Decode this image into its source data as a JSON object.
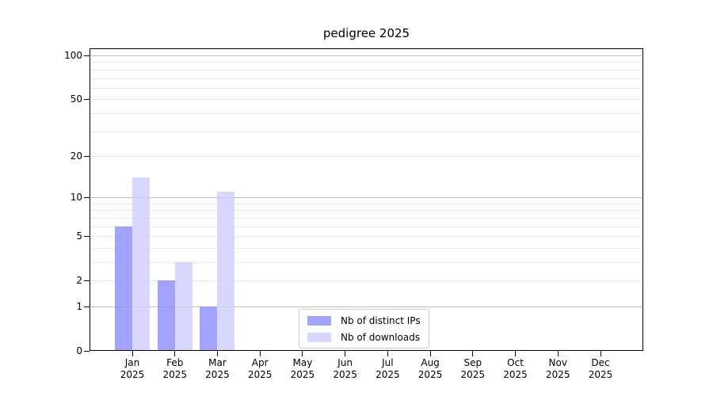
{
  "chart_data": {
    "type": "bar",
    "title": "pedigree 2025",
    "year": "2025",
    "categories": [
      "Jan",
      "Feb",
      "Mar",
      "Apr",
      "May",
      "Jun",
      "Jul",
      "Aug",
      "Sep",
      "Oct",
      "Nov",
      "Dec"
    ],
    "series": [
      {
        "name": "Nb of distinct IPs",
        "color": "#8888ff",
        "values": [
          6,
          2,
          1,
          0,
          0,
          0,
          0,
          0,
          0,
          0,
          0,
          0
        ]
      },
      {
        "name": "Nb of downloads",
        "color": "#ccccff",
        "values": [
          14,
          3,
          11,
          0,
          0,
          0,
          0,
          0,
          0,
          0,
          0,
          0
        ]
      }
    ],
    "bar_alpha": 0.78,
    "scale": "log1p",
    "ylim": [
      0,
      112
    ],
    "y_ticks": [
      0,
      1,
      2,
      5,
      10,
      20,
      50,
      100
    ],
    "y_major_gridlines": [
      1,
      10,
      100
    ],
    "y_minor_gridlines": [
      2,
      3,
      4,
      5,
      6,
      7,
      8,
      9,
      20,
      30,
      40,
      50,
      60,
      70,
      80,
      90
    ],
    "grid": {
      "major_color": "#c0c0c0",
      "minor_color": "#e8e8e8"
    },
    "axis_color": "#000000",
    "legend": {
      "position": "lower center",
      "border_color": "#cccccc",
      "background": "#ffffff"
    }
  }
}
